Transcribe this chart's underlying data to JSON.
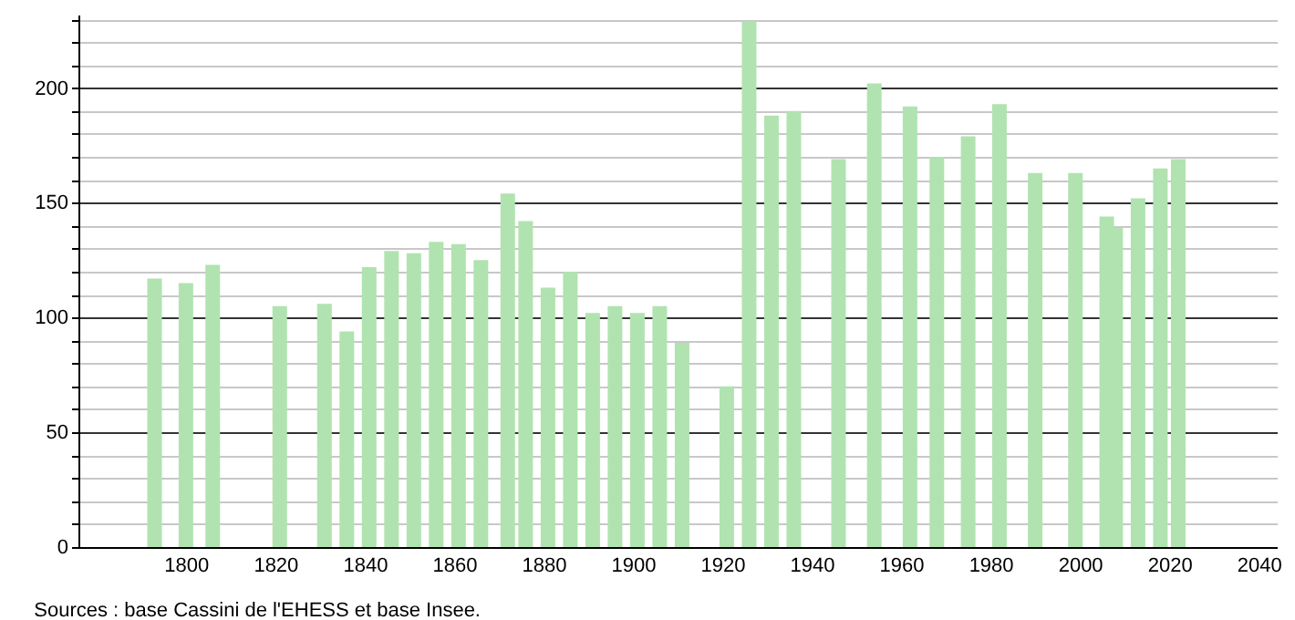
{
  "chart_data": {
    "type": "bar",
    "annotations": [
      "Sources : base Cassini de l'EHESS et base Insee."
    ],
    "x": [
      1793,
      1800,
      1806,
      1821,
      1831,
      1836,
      1841,
      1846,
      1851,
      1856,
      1861,
      1866,
      1872,
      1876,
      1881,
      1886,
      1891,
      1896,
      1901,
      1906,
      1911,
      1921,
      1926,
      1931,
      1936,
      1946,
      1954,
      1962,
      1968,
      1975,
      1982,
      1990,
      1999,
      2006,
      2008,
      2013,
      2018,
      2022
    ],
    "values": [
      117,
      115,
      123,
      105,
      106,
      94,
      122,
      129,
      128,
      133,
      132,
      125,
      154,
      142,
      113,
      120,
      102,
      105,
      102,
      105,
      89,
      70,
      229,
      188,
      190,
      169,
      202,
      192,
      170,
      179,
      193,
      163,
      163,
      144,
      139,
      152,
      165,
      169
    ],
    "color": "#b0e3b0",
    "xlim": [
      1778,
      2042
    ],
    "xticks": [
      1800,
      1820,
      1840,
      1860,
      1880,
      1900,
      1920,
      1940,
      1960,
      1980,
      2000,
      2020,
      2040
    ],
    "ylim": [
      0,
      232
    ],
    "yticks": [
      0,
      {
        "value": 10,
        "label": null
      },
      {
        "value": 20,
        "label": null
      },
      {
        "value": 30,
        "label": null
      },
      {
        "value": 40,
        "label": null
      },
      50,
      {
        "value": 60,
        "label": null
      },
      {
        "value": 70,
        "label": null
      },
      {
        "value": 80,
        "label": null
      },
      {
        "value": 90,
        "label": null
      },
      100,
      {
        "value": 110,
        "label": null
      },
      {
        "value": 120,
        "label": null
      },
      {
        "value": 130,
        "label": null
      },
      {
        "value": 140,
        "label": null
      },
      150,
      {
        "value": 160,
        "label": null
      },
      {
        "value": 170,
        "label": null
      },
      {
        "value": 180,
        "label": null
      },
      {
        "value": 190,
        "label": null
      },
      200,
      {
        "value": 210,
        "label": null
      },
      {
        "value": 220,
        "label": null
      },
      {
        "value": 230,
        "label": null
      }
    ],
    "grid": "y"
  }
}
